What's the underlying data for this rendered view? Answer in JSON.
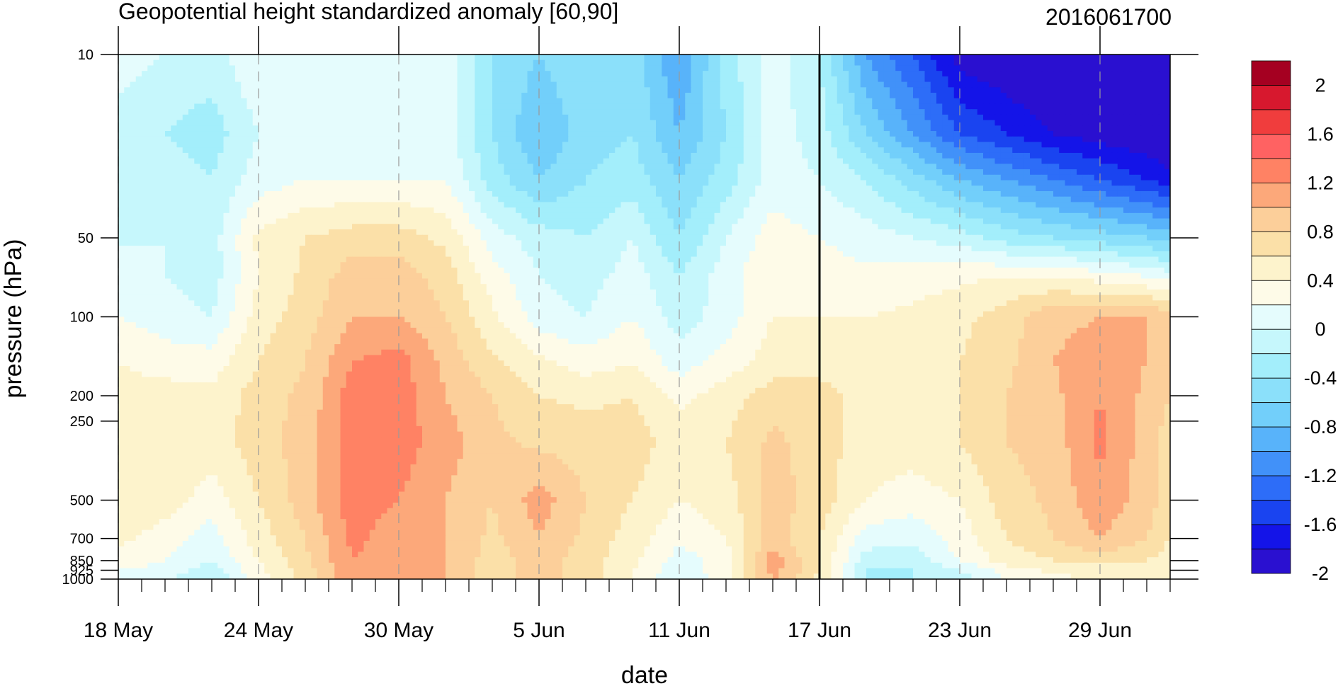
{
  "chart_data": {
    "type": "filled-contour",
    "title": "Geopotential height standardized anomaly [60,90]",
    "subtitle": "2016061700",
    "xlabel": "date",
    "ylabel": "pressure (hPa)",
    "x_ticks": [
      "18 May",
      "24 May",
      "30 May",
      "5 Jun",
      "11 Jun",
      "17 Jun",
      "23 Jun",
      "29 Jun"
    ],
    "x_days": [
      0,
      6,
      12,
      18,
      24,
      30,
      36,
      42
    ],
    "x_range_days": [
      0,
      45
    ],
    "y_ticks": [
      "10",
      "50",
      "100",
      "200",
      "250",
      "500",
      "700",
      "850",
      "925",
      "1000"
    ],
    "y_values": [
      10,
      50,
      100,
      200,
      250,
      500,
      700,
      850,
      925,
      1000
    ],
    "y_scale": "log",
    "y_range": [
      10,
      1000
    ],
    "marked_date": "17 Jun",
    "colorbar": {
      "labels": [
        "2",
        "1.6",
        "1.2",
        "0.8",
        "0.4",
        "0",
        "-0.4",
        "-0.8",
        "-1.2",
        "-1.6",
        "-2"
      ],
      "colors": [
        "#a50021",
        "#d7182e",
        "#f03d3d",
        "#ff6262",
        "#ff8264",
        "#fca87a",
        "#fccf9a",
        "#fbe0a8",
        "#fdf3cc",
        "#fefbe8",
        "#e5fcfd",
        "#c6f7fc",
        "#a3eefb",
        "#8be0fa",
        "#72cffa",
        "#58b3fa",
        "#4191f9",
        "#2d6df8",
        "#1a44f0",
        "#1414e8",
        "#2a10d0"
      ]
    },
    "levels": [
      -2.2,
      -2.0,
      -1.8,
      -1.6,
      -1.4,
      -1.2,
      -1.0,
      -0.8,
      -0.6,
      -0.4,
      -0.2,
      0,
      0.2,
      0.4,
      0.6,
      0.8
    ],
    "days": [
      0,
      2,
      4,
      6,
      8,
      10,
      12,
      14,
      16,
      18,
      20,
      22,
      24,
      26,
      28,
      30,
      32,
      34,
      36,
      38,
      40,
      42,
      44,
      45
    ],
    "pressures": [
      10,
      20,
      30,
      50,
      70,
      100,
      150,
      200,
      300,
      500,
      700,
      850,
      925,
      1000
    ],
    "values": [
      [
        -0.3,
        -0.4,
        -0.5,
        -0.2,
        -0.2,
        -0.2,
        -0.2,
        -0.3,
        -0.8,
        -1.0,
        -0.8,
        -0.9,
        -1.4,
        -0.7,
        -0.3,
        -0.6,
        -1.4,
        -1.8,
        -2.3,
        -2.4,
        -2.6,
        -2.6,
        -2.6,
        -2.6
      ],
      [
        -0.5,
        -0.6,
        -0.7,
        -0.4,
        -0.3,
        -0.3,
        -0.3,
        -0.3,
        -0.8,
        -1.2,
        -0.9,
        -0.8,
        -1.2,
        -0.8,
        -0.3,
        -0.5,
        -1.0,
        -1.4,
        -1.8,
        -2.0,
        -2.2,
        -2.3,
        -2.4,
        -2.5
      ],
      [
        -0.5,
        -0.5,
        -0.6,
        -0.3,
        -0.2,
        -0.2,
        -0.2,
        -0.2,
        -0.7,
        -1.0,
        -0.8,
        -0.7,
        -1.0,
        -0.7,
        -0.3,
        -0.4,
        -0.6,
        -0.9,
        -1.2,
        -1.4,
        -1.6,
        -1.8,
        -2.0,
        -2.1
      ],
      [
        -0.4,
        -0.4,
        -0.5,
        0.05,
        0.2,
        0.3,
        0.3,
        0.15,
        -0.3,
        -0.5,
        -0.6,
        -0.4,
        -0.8,
        -0.4,
        -0.1,
        -0.2,
        -0.3,
        -0.4,
        -0.5,
        -0.7,
        -0.8,
        -0.9,
        -1.0,
        -1.1
      ],
      [
        -0.4,
        -0.4,
        -0.5,
        0.0,
        0.25,
        0.5,
        0.5,
        0.3,
        -0.1,
        -0.4,
        -0.5,
        -0.3,
        -0.6,
        -0.3,
        0.0,
        -0.1,
        -0.15,
        -0.1,
        -0.05,
        0.0,
        0.0,
        -0.1,
        -0.2,
        -0.3
      ],
      [
        -0.2,
        -0.3,
        -0.4,
        0.1,
        0.3,
        0.6,
        0.6,
        0.4,
        0.05,
        -0.3,
        -0.4,
        -0.2,
        -0.5,
        -0.3,
        0.0,
        0.0,
        0.0,
        0.05,
        0.15,
        0.3,
        0.55,
        0.6,
        0.6,
        0.5
      ],
      [
        0.0,
        -0.1,
        -0.1,
        0.2,
        0.4,
        0.8,
        0.9,
        0.55,
        0.25,
        0.05,
        -0.1,
        0.0,
        -0.3,
        -0.1,
        0.1,
        0.1,
        0.1,
        0.1,
        0.2,
        0.35,
        0.6,
        0.7,
        0.6,
        0.5
      ],
      [
        0.1,
        0.1,
        0.05,
        0.3,
        0.45,
        0.9,
        0.9,
        0.6,
        0.4,
        0.2,
        0.15,
        0.2,
        -0.05,
        0.1,
        0.3,
        0.3,
        0.1,
        0.1,
        0.2,
        0.4,
        0.55,
        0.8,
        0.55,
        0.4
      ],
      [
        0.2,
        0.2,
        0.1,
        0.3,
        0.5,
        0.9,
        0.9,
        0.7,
        0.45,
        0.35,
        0.3,
        0.3,
        0.1,
        0.2,
        0.45,
        0.3,
        0.1,
        0.1,
        0.2,
        0.4,
        0.5,
        0.85,
        0.5,
        0.3
      ],
      [
        0.2,
        0.1,
        -0.1,
        0.2,
        0.5,
        0.9,
        0.8,
        0.6,
        0.4,
        0.7,
        0.4,
        0.2,
        0.0,
        0.1,
        0.5,
        0.3,
        0.0,
        -0.1,
        0.0,
        0.3,
        0.45,
        0.75,
        0.5,
        0.3
      ],
      [
        0.05,
        -0.1,
        -0.3,
        0.1,
        0.4,
        0.85,
        0.7,
        0.6,
        0.35,
        0.6,
        0.35,
        0.1,
        -0.15,
        0.0,
        0.5,
        0.2,
        -0.3,
        -0.35,
        -0.1,
        0.2,
        0.4,
        0.6,
        0.4,
        0.2
      ],
      [
        -0.05,
        -0.2,
        -0.4,
        0.0,
        0.35,
        0.8,
        0.7,
        0.6,
        0.3,
        0.5,
        0.3,
        0.05,
        -0.3,
        -0.1,
        0.7,
        0.2,
        -0.5,
        -0.5,
        -0.2,
        0.1,
        0.2,
        0.3,
        0.2,
        0.1
      ],
      [
        -0.2,
        -0.3,
        -0.5,
        -0.05,
        0.3,
        0.8,
        0.7,
        0.6,
        0.3,
        0.5,
        0.3,
        0.0,
        -0.35,
        -0.05,
        0.7,
        0.2,
        -0.6,
        -0.6,
        -0.4,
        -0.1,
        0.05,
        0.1,
        0.05,
        0.0
      ],
      [
        -0.3,
        -0.35,
        -0.6,
        -0.1,
        0.3,
        0.8,
        0.7,
        0.6,
        0.3,
        0.5,
        0.3,
        0.0,
        -0.4,
        -0.1,
        0.6,
        0.15,
        -0.65,
        -0.6,
        -0.5,
        -0.2,
        -0.05,
        0.0,
        0.0,
        0.05
      ]
    ]
  }
}
